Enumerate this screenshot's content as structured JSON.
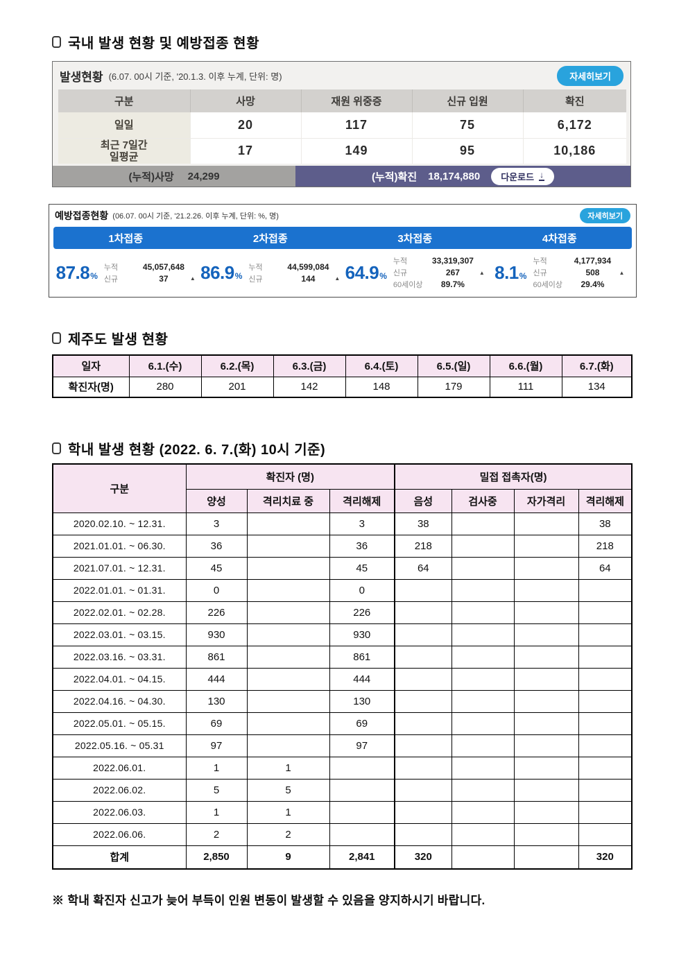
{
  "sections": {
    "domestic_title": "국내 발생 현황 및 예방접종 현황",
    "jeju_title": "제주도 발생 현황",
    "school_title": "학내 발생 현황 (2022. 6. 7.(화) 10시 기준)",
    "footer_note": "※ 학내 확진자 신고가 늦어 부득이 인원 변동이 발생할 수 있음을 양지하시기 바랍니다."
  },
  "outbreak": {
    "title": "발생현황",
    "subtitle": "(6.07. 00시 기준, '20.1.3. 이후 누계, 단위: 명)",
    "detail_button": "자세히보기",
    "columns": [
      "구분",
      "사망",
      "재원 위중증",
      "신규 입원",
      "확진"
    ],
    "rows": [
      {
        "label": "일일",
        "values": [
          "20",
          "117",
          "75",
          "6,172"
        ]
      },
      {
        "label": "최근 7일간\n일평균",
        "values": [
          "17",
          "149",
          "95",
          "10,186"
        ]
      }
    ],
    "cumulative": {
      "death_label": "(누적)사망",
      "death_value": "24,299",
      "confirmed_label": "(누적)확진",
      "confirmed_value": "18,174,880",
      "download_label": "다운로드",
      "download_icon": "↓"
    },
    "colors": {
      "header_bg": "#d3d1ce",
      "label_bg": "#edebe2",
      "cum_left_bg": "#a3a2a0",
      "cum_right_bg": "#5d5d8b",
      "detail_btn": "#29a3dd"
    }
  },
  "vaccine": {
    "title": "예방접종현황",
    "subtitle": "(06.07. 00시 기준, '21.2.26. 이후 누계, 단위: %, 명)",
    "detail_button": "자세히보기",
    "bar_color": "#1b72cf",
    "percent_color": "#1463bc",
    "doses": [
      {
        "name": "1차접종",
        "percent": "87.8",
        "unit": "%",
        "stats": [
          {
            "label": "누적",
            "value": "45,057,648",
            "up": false
          },
          {
            "label": "신규",
            "value": "37",
            "up": true
          }
        ]
      },
      {
        "name": "2차접종",
        "percent": "86.9",
        "unit": "%",
        "stats": [
          {
            "label": "누적",
            "value": "44,599,084",
            "up": false
          },
          {
            "label": "신규",
            "value": "144",
            "up": true
          }
        ]
      },
      {
        "name": "3차접종",
        "percent": "64.9",
        "unit": "%",
        "stats": [
          {
            "label": "누적",
            "value": "33,319,307",
            "up": false
          },
          {
            "label": "신규",
            "value": "267",
            "up": true
          },
          {
            "label": "60세이상",
            "value": "89.7%",
            "up": false
          }
        ]
      },
      {
        "name": "4차접종",
        "percent": "8.1",
        "unit": "%",
        "stats": [
          {
            "label": "누적",
            "value": "4,177,934",
            "up": false
          },
          {
            "label": "신규",
            "value": "508",
            "up": true
          },
          {
            "label": "60세이상",
            "value": "29.4%",
            "up": false
          }
        ]
      }
    ]
  },
  "jeju": {
    "columns": [
      "일자",
      "6.1.(수)",
      "6.2.(목)",
      "6.3.(금)",
      "6.4.(토)",
      "6.5.(일)",
      "6.6.(월)",
      "6.7.(화)"
    ],
    "row_label": "확진자(명)",
    "values": [
      "280",
      "201",
      "142",
      "148",
      "179",
      "111",
      "134"
    ],
    "header_bg": "#f7e4f1"
  },
  "school": {
    "corner": "구분",
    "group1": "확진자 (명)",
    "group1_cols": [
      "양성",
      "격리치료 중",
      "격리해제"
    ],
    "group2": "밀접 접촉자(명)",
    "group2_cols": [
      "음성",
      "검사중",
      "자가격리",
      "격리해제"
    ],
    "rows": [
      {
        "label": "2020.02.10.  ~  12.31.",
        "cells": [
          "3",
          "",
          "3",
          "38",
          "",
          "",
          "38"
        ]
      },
      {
        "label": "2021.01.01.  ~  06.30.",
        "cells": [
          "36",
          "",
          "36",
          "218",
          "",
          "",
          "218"
        ]
      },
      {
        "label": "2021.07.01.  ~  12.31.",
        "cells": [
          "45",
          "",
          "45",
          "64",
          "",
          "",
          "64"
        ]
      },
      {
        "label": "2022.01.01.  ~  01.31.",
        "cells": [
          "0",
          "",
          "0",
          "",
          "",
          "",
          ""
        ]
      },
      {
        "label": "2022.02.01.  ~  02.28.",
        "cells": [
          "226",
          "",
          "226",
          "",
          "",
          "",
          ""
        ]
      },
      {
        "label": "2022.03.01.  ~  03.15.",
        "cells": [
          "930",
          "",
          "930",
          "",
          "",
          "",
          ""
        ]
      },
      {
        "label": "2022.03.16.  ~  03.31.",
        "cells": [
          "861",
          "",
          "861",
          "",
          "",
          "",
          ""
        ]
      },
      {
        "label": "2022.04.01.  ~  04.15.",
        "cells": [
          "444",
          "",
          "444",
          "",
          "",
          "",
          ""
        ]
      },
      {
        "label": "2022.04.16.  ~  04.30.",
        "cells": [
          "130",
          "",
          "130",
          "",
          "",
          "",
          ""
        ]
      },
      {
        "label": "2022.05.01.  ~  05.15.",
        "cells": [
          "69",
          "",
          "69",
          "",
          "",
          "",
          ""
        ]
      },
      {
        "label": "2022.05.16.  ~  05.31",
        "cells": [
          "97",
          "",
          "97",
          "",
          "",
          "",
          ""
        ]
      },
      {
        "label": "2022.06.01.",
        "cells": [
          "1",
          "1",
          "",
          "",
          "",
          "",
          ""
        ]
      },
      {
        "label": "2022.06.02.",
        "cells": [
          "5",
          "5",
          "",
          "",
          "",
          "",
          ""
        ]
      },
      {
        "label": "2022.06.03.",
        "cells": [
          "1",
          "1",
          "",
          "",
          "",
          "",
          ""
        ]
      },
      {
        "label": "2022.06.06.",
        "cells": [
          "2",
          "2",
          "",
          "",
          "",
          "",
          ""
        ]
      }
    ],
    "total": {
      "label": "합계",
      "cells": [
        "2,850",
        "9",
        "2,841",
        "320",
        "",
        "",
        "320"
      ]
    }
  }
}
